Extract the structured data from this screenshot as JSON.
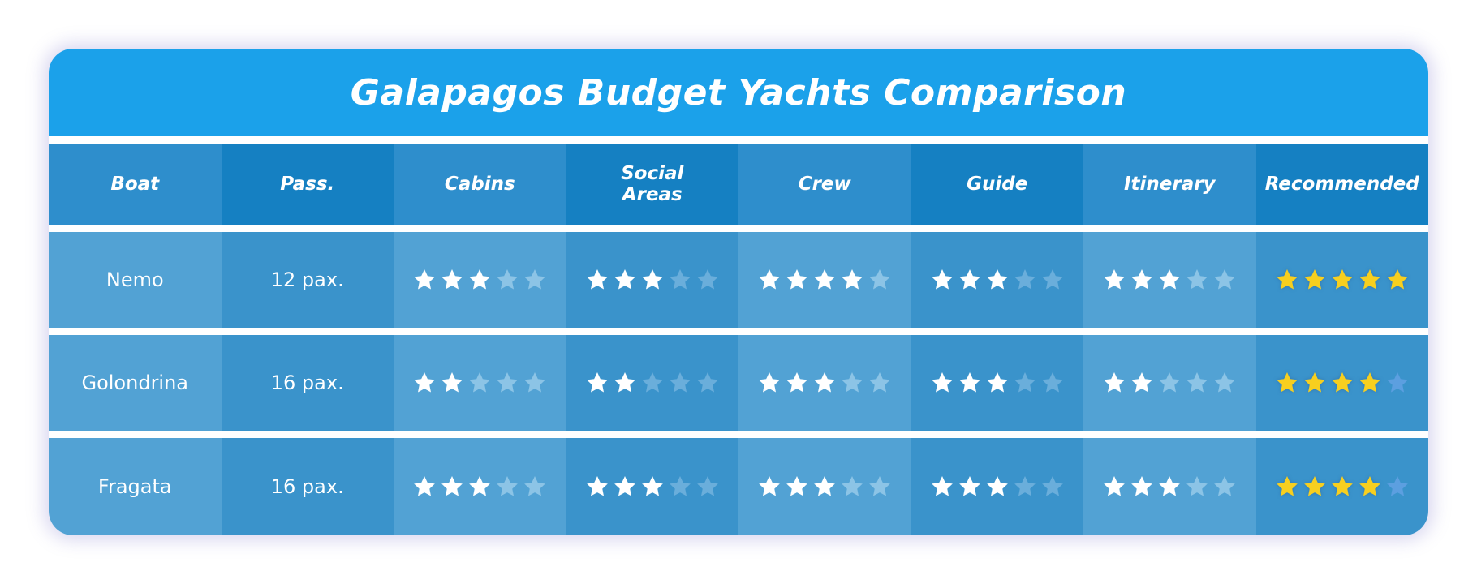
{
  "title": "Galapagos Budget Yachts Comparison",
  "columns": [
    "Boat",
    "Pass.",
    "Cabins",
    "Social Areas",
    "Crew",
    "Guide",
    "Itinerary",
    "Recommended"
  ],
  "rows": [
    {
      "boat": "Nemo",
      "pass": "12 pax.",
      "ratings": {
        "cabins": 3,
        "social_areas": 3,
        "crew": 4,
        "guide": 3,
        "itinerary": 3,
        "recommended": 5
      }
    },
    {
      "boat": "Golondrina",
      "pass": "16 pax.",
      "ratings": {
        "cabins": 2,
        "social_areas": 2,
        "crew": 3,
        "guide": 3,
        "itinerary": 2,
        "recommended": 4
      }
    },
    {
      "boat": "Fragata",
      "pass": "16 pax.",
      "ratings": {
        "cabins": 3,
        "social_areas": 3,
        "crew": 3,
        "guide": 3,
        "itinerary": 3,
        "recommended": 4
      }
    }
  ],
  "max_rating": 5,
  "colors": {
    "title_bar": "#1ba1ea",
    "star_filled": "#ffffff",
    "star_recommended": "#f7cf1f",
    "star_empty_on_light": "#8cc4e6",
    "star_empty_on_dark": "#6aaedb",
    "star_empty_recommended": "#5c9fe0"
  },
  "icons": {
    "rating": "star-icon"
  }
}
